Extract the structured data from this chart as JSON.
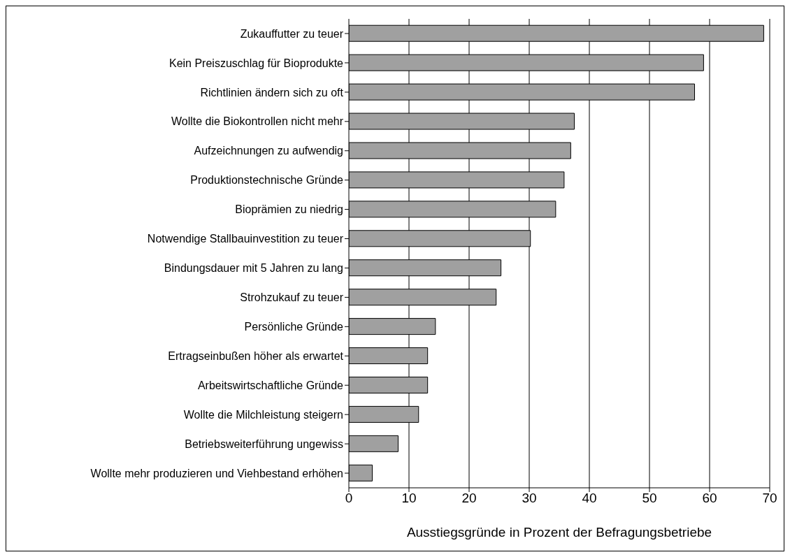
{
  "chart_data": {
    "type": "bar",
    "orientation": "horizontal",
    "xlabel": "Ausstiegsgründe  in Prozent der Befragungsbetriebe",
    "categories": [
      "Zukauffutter zu teuer",
      "Kein Preiszuschlag für Bioprodukte",
      "Richtlinien ändern sich zu oft",
      "Wollte die Biokontrollen nicht mehr",
      "Aufzeichnungen zu aufwendig",
      "Produktionstechnische Gründe",
      "Bioprämien zu niedrig",
      "Notwendige Stallbauinvestition zu teuer",
      "Bindungsdauer mit 5 Jahren zu lang",
      "Strohzukauf zu teuer",
      "Persönliche Gründe",
      "Ertragseinbußen höher als erwartet",
      "Arbeitswirtschaftliche Gründe",
      "Wollte die Milchleistung steigern",
      "Betriebsweiterführung ungewiss",
      "Wollte mehr produzieren und Viehbestand erhöhen"
    ],
    "values": [
      69,
      59,
      57.5,
      37.5,
      36.9,
      35.8,
      34.4,
      30.2,
      25.3,
      24.5,
      14.4,
      13.1,
      13.1,
      11.6,
      8.2,
      3.9
    ],
    "color": "#a0a0a0",
    "xlim": [
      0,
      70
    ],
    "xticks": [
      0,
      10,
      20,
      30,
      40,
      50,
      60,
      70
    ],
    "grid": "x",
    "legend": false
  }
}
